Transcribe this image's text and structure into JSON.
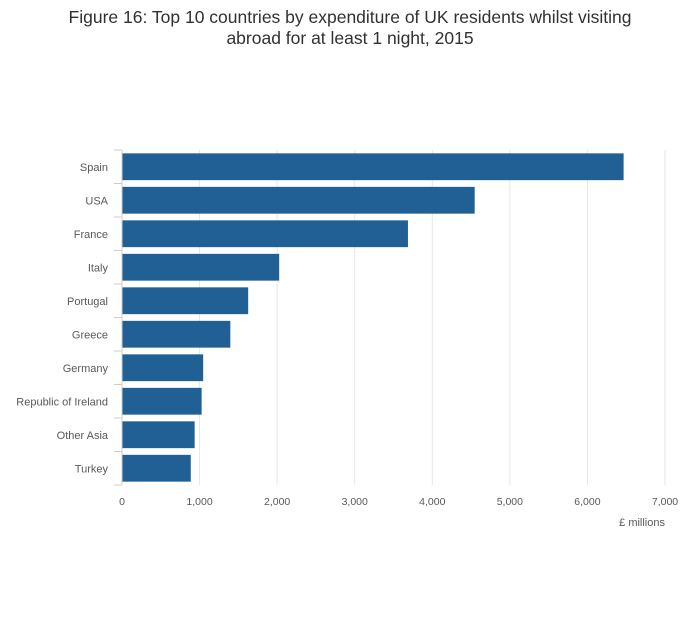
{
  "title_lines": [
    "Figure 16: Top 10 countries by expenditure of UK residents whilst visiting",
    "abroad for at least 1 night, 2015"
  ],
  "chart_data": {
    "type": "bar",
    "orientation": "horizontal",
    "title": "Figure 16: Top 10 countries by expenditure of UK residents whilst visiting abroad for at least 1 night, 2015",
    "xlabel": "£ millions",
    "ylabel": "",
    "categories": [
      "Spain",
      "USA",
      "France",
      "Italy",
      "Portugal",
      "Greece",
      "Germany",
      "Republic of Ireland",
      "Other Asia",
      "Turkey"
    ],
    "values": [
      6460,
      4540,
      3680,
      2020,
      1620,
      1390,
      1040,
      1020,
      930,
      880
    ],
    "xlim": [
      0,
      7000
    ],
    "xticks": [
      0,
      1000,
      2000,
      3000,
      4000,
      5000,
      6000,
      7000
    ],
    "xtick_labels": [
      "0",
      "1,000",
      "2,000",
      "3,000",
      "4,000",
      "5,000",
      "6,000",
      "7,000"
    ],
    "grid": true,
    "legend": "none",
    "bar_color": "#206095",
    "grid_color": "#e6e6e6"
  }
}
